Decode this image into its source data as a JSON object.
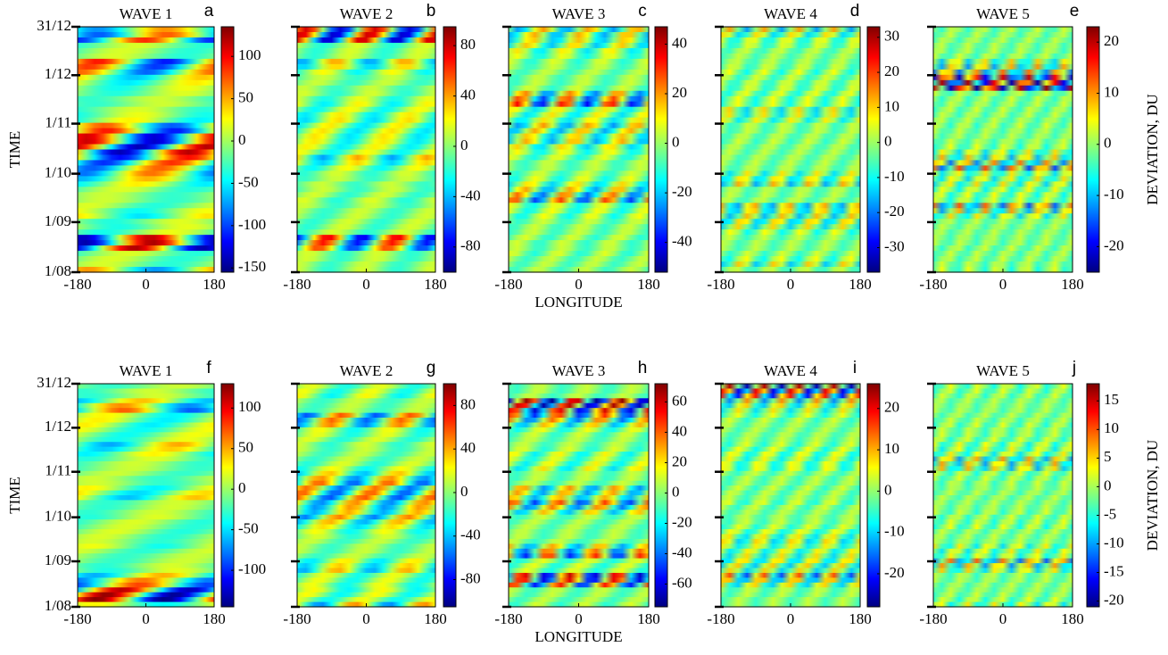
{
  "figure_rows": [
    {
      "y_label": "TIME",
      "x_label": "LONGITUDE",
      "colorbar_label": "DEVIATION, DU"
    },
    {
      "y_label": "TIME",
      "x_label": "LONGITUDE",
      "colorbar_label": "DEVIATION, DU"
    }
  ],
  "chart_data": [
    {
      "type": "heatmap",
      "panel_label": "a",
      "title": "WAVE 1",
      "xlim": [
        -180,
        180
      ],
      "xticks": [
        -180,
        0,
        180
      ],
      "ylim": [
        0,
        152
      ],
      "yticks": [
        {
          "value": 0,
          "label": "1/08"
        },
        {
          "value": 31,
          "label": "1/09"
        },
        {
          "value": 61,
          "label": "1/10"
        },
        {
          "value": 92,
          "label": "1/11"
        },
        {
          "value": 122,
          "label": "1/12"
        },
        {
          "value": 152,
          "label": "31/12"
        }
      ],
      "clim": [
        -155,
        135
      ],
      "cticks": [
        100,
        50,
        0,
        -50,
        -100,
        -150
      ]
    },
    {
      "type": "heatmap",
      "panel_label": "b",
      "title": "WAVE 2",
      "xlim": [
        -180,
        180
      ],
      "xticks": [
        -180,
        0,
        180
      ],
      "clim": [
        -100,
        95
      ],
      "cticks": [
        80,
        40,
        0,
        -40,
        -80
      ]
    },
    {
      "type": "heatmap",
      "panel_label": "c",
      "title": "WAVE 3",
      "xlim": [
        -180,
        180
      ],
      "xticks": [
        -180,
        0,
        180
      ],
      "clim": [
        -52,
        47
      ],
      "cticks": [
        40,
        20,
        0,
        -20,
        -40
      ]
    },
    {
      "type": "heatmap",
      "panel_label": "d",
      "title": "WAVE 4",
      "xlim": [
        -180,
        180
      ],
      "xticks": [
        -180,
        0,
        180
      ],
      "clim": [
        -37,
        33
      ],
      "cticks": [
        30,
        20,
        10,
        0,
        -10,
        -20,
        -30
      ]
    },
    {
      "type": "heatmap",
      "panel_label": "e",
      "title": "WAVE 5",
      "xlim": [
        -180,
        180
      ],
      "xticks": [
        -180,
        0,
        180
      ],
      "clim": [
        -25,
        23
      ],
      "cticks": [
        20,
        10,
        0,
        -10,
        -20
      ]
    },
    {
      "type": "heatmap",
      "panel_label": "f",
      "title": "WAVE 1",
      "xlim": [
        -180,
        180
      ],
      "xticks": [
        -180,
        0,
        180
      ],
      "ylim": [
        0,
        152
      ],
      "yticks": [
        {
          "value": 0,
          "label": "1/08"
        },
        {
          "value": 31,
          "label": "1/09"
        },
        {
          "value": 61,
          "label": "1/10"
        },
        {
          "value": 92,
          "label": "1/11"
        },
        {
          "value": 122,
          "label": "1/12"
        },
        {
          "value": 152,
          "label": "31/12"
        }
      ],
      "clim": [
        -145,
        130
      ],
      "cticks": [
        100,
        50,
        0,
        -50,
        -100
      ]
    },
    {
      "type": "heatmap",
      "panel_label": "g",
      "title": "WAVE 2",
      "xlim": [
        -180,
        180
      ],
      "xticks": [
        -180,
        0,
        180
      ],
      "clim": [
        -105,
        100
      ],
      "cticks": [
        80,
        40,
        0,
        -40,
        -80
      ]
    },
    {
      "type": "heatmap",
      "panel_label": "h",
      "title": "WAVE 3",
      "xlim": [
        -180,
        180
      ],
      "xticks": [
        -180,
        0,
        180
      ],
      "clim": [
        -75,
        72
      ],
      "cticks": [
        60,
        40,
        20,
        0,
        -20,
        -40,
        -60
      ]
    },
    {
      "type": "heatmap",
      "panel_label": "i",
      "title": "WAVE 4",
      "xlim": [
        -180,
        180
      ],
      "xticks": [
        -180,
        0,
        180
      ],
      "clim": [
        -28,
        26
      ],
      "cticks": [
        20,
        10,
        0,
        -10,
        -20
      ]
    },
    {
      "type": "heatmap",
      "panel_label": "j",
      "title": "WAVE 5",
      "xlim": [
        -180,
        180
      ],
      "xticks": [
        -180,
        0,
        180
      ],
      "clim": [
        -21,
        18
      ],
      "cticks": [
        15,
        10,
        5,
        0,
        -5,
        -10,
        -15,
        -20
      ]
    }
  ]
}
